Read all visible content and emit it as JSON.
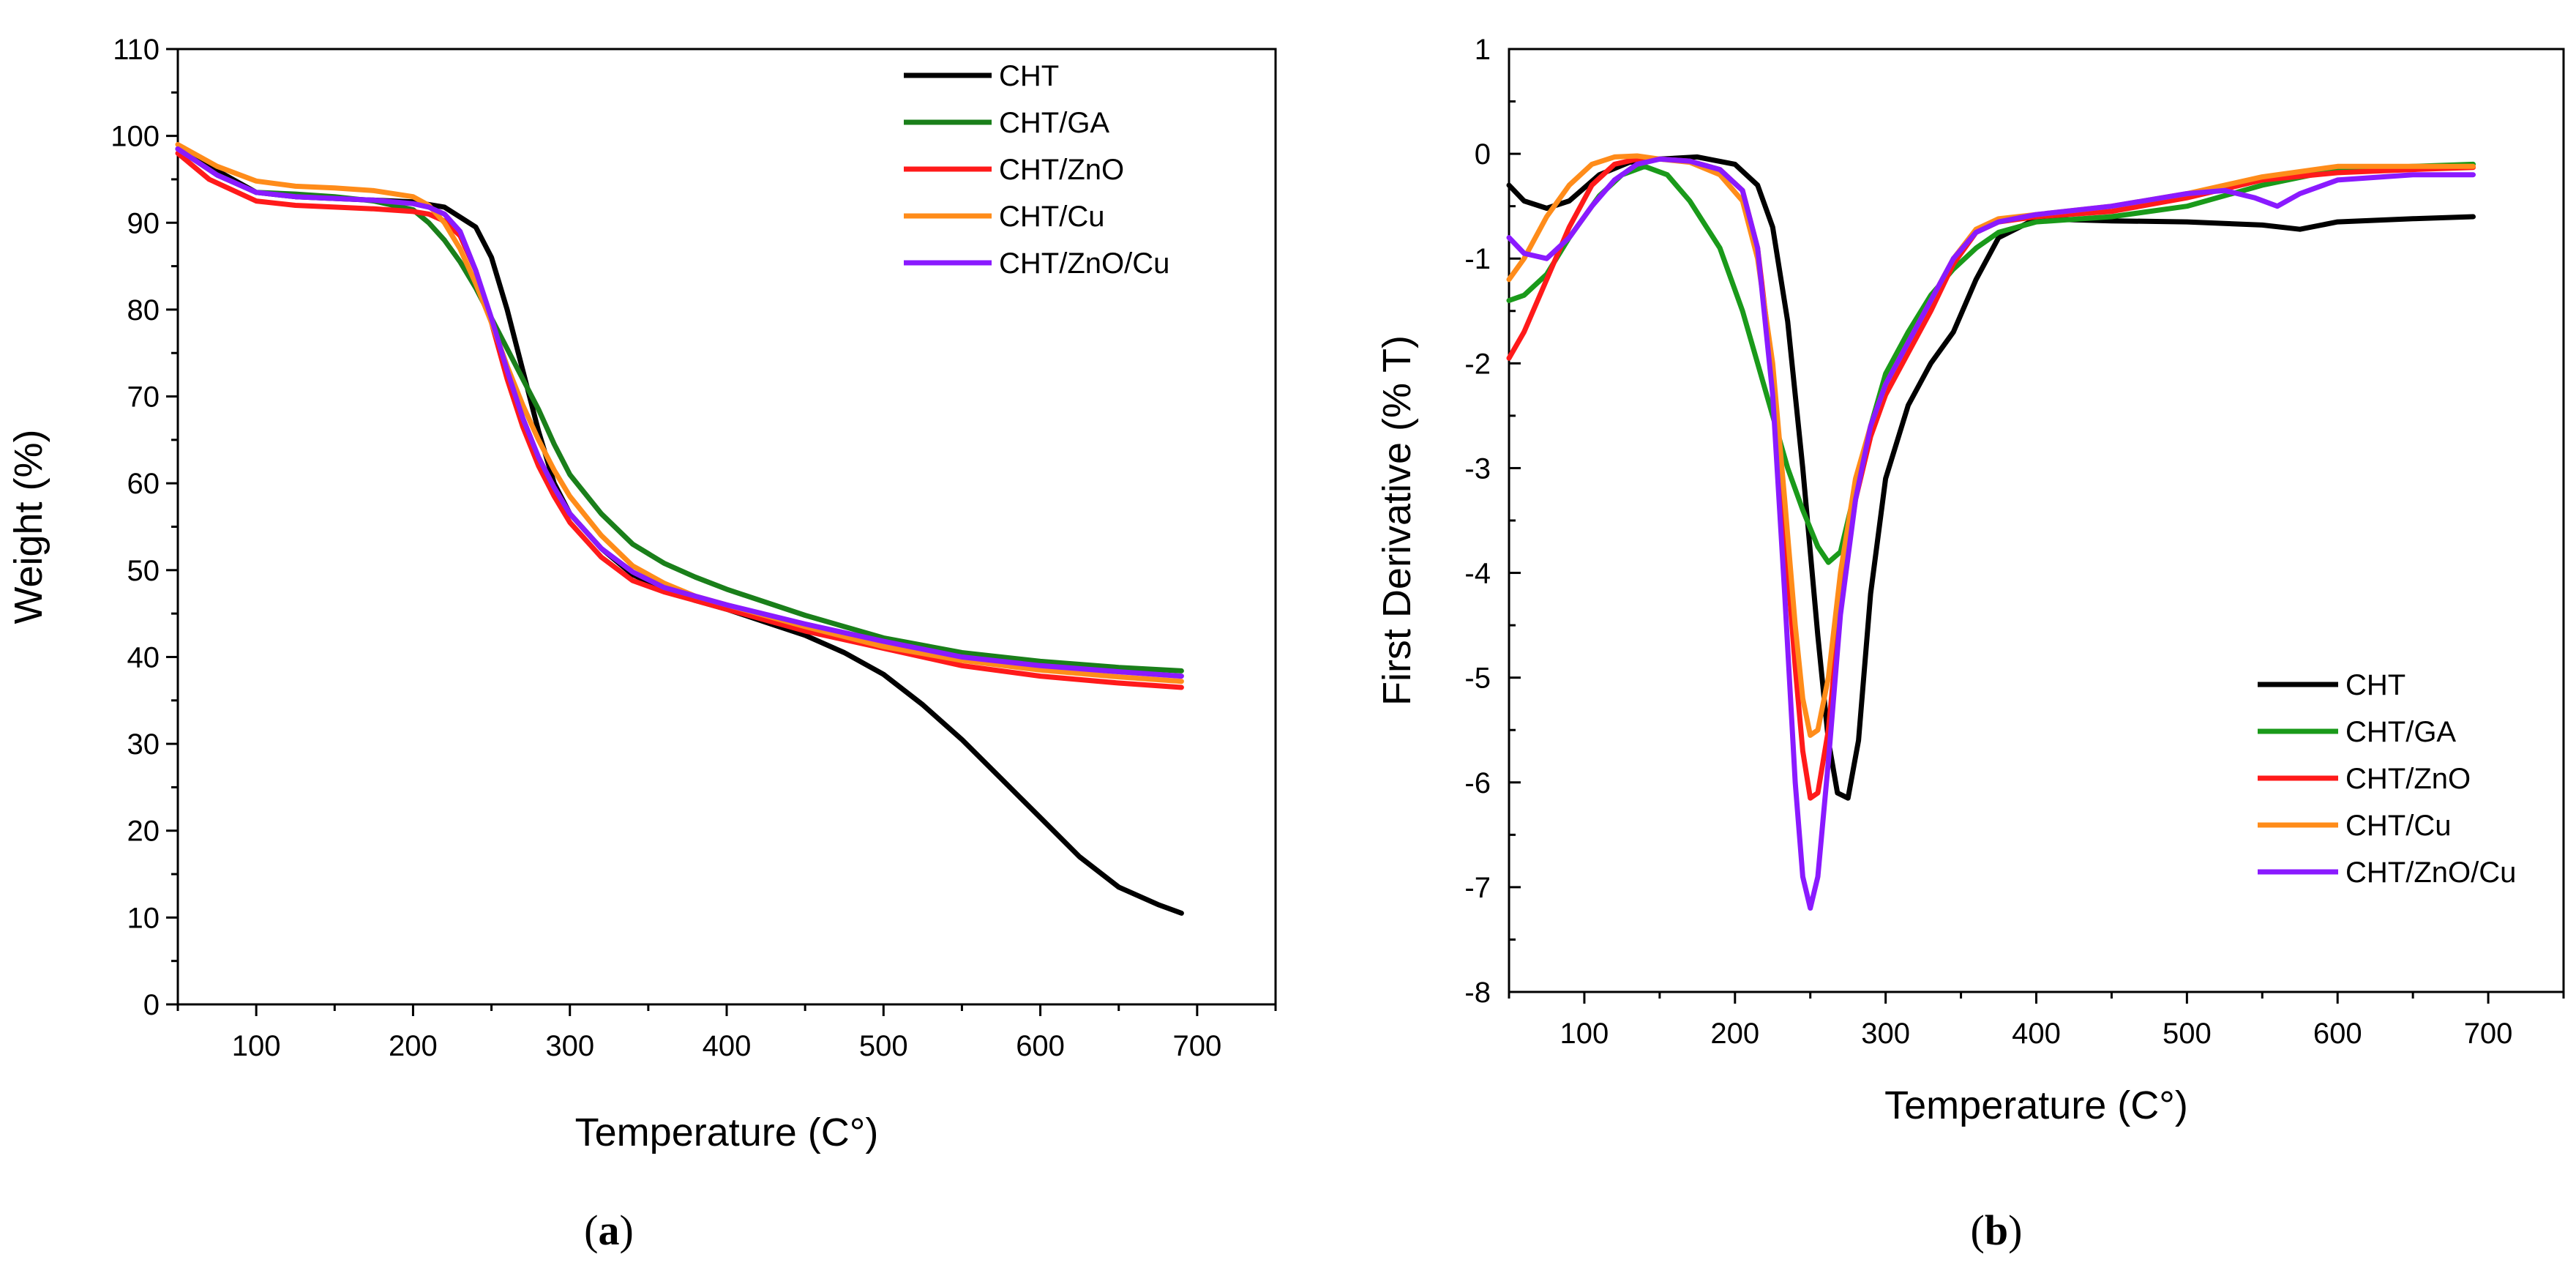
{
  "chart_data": [
    {
      "type": "line",
      "panel": "a",
      "caption_letter": "a",
      "xlabel": "Temperature (C°)",
      "ylabel": "Weight (%)",
      "xlim": [
        50,
        750
      ],
      "ylim": [
        0,
        110
      ],
      "xticks": [
        100,
        200,
        300,
        400,
        500,
        600,
        700
      ],
      "yticks": [
        0,
        10,
        20,
        30,
        40,
        50,
        60,
        70,
        80,
        90,
        100,
        110
      ],
      "legend_position": "top-right",
      "series": [
        {
          "name": "CHT",
          "color": "#000000",
          "x": [
            50,
            75,
            100,
            125,
            150,
            175,
            200,
            220,
            240,
            250,
            260,
            270,
            280,
            290,
            300,
            320,
            340,
            360,
            380,
            400,
            425,
            450,
            475,
            500,
            525,
            550,
            575,
            600,
            625,
            650,
            675,
            690
          ],
          "y": [
            98.5,
            96,
            93.5,
            93,
            92.8,
            92.6,
            92.4,
            91.8,
            89.5,
            86,
            80,
            73,
            66,
            60,
            56.5,
            52.5,
            49.5,
            47.8,
            46.5,
            45.5,
            44,
            42.5,
            40.5,
            38,
            34.5,
            30.5,
            26,
            21.5,
            17,
            13.5,
            11.5,
            10.5
          ]
        },
        {
          "name": "CHT/GA",
          "color": "#1a7f1a",
          "x": [
            50,
            75,
            100,
            125,
            150,
            175,
            200,
            210,
            220,
            230,
            240,
            250,
            260,
            270,
            280,
            290,
            300,
            320,
            340,
            360,
            380,
            400,
            450,
            500,
            550,
            600,
            650,
            690
          ],
          "y": [
            98.5,
            95.5,
            93.5,
            93.3,
            93,
            92.5,
            91.5,
            90,
            88,
            85.5,
            82.5,
            79,
            75.5,
            72,
            68.5,
            64.5,
            61,
            56.5,
            53,
            50.8,
            49.2,
            47.8,
            44.8,
            42.2,
            40.5,
            39.5,
            38.8,
            38.4
          ]
        },
        {
          "name": "CHT/ZnO",
          "color": "#ff1a1a",
          "x": [
            50,
            70,
            100,
            125,
            150,
            175,
            200,
            210,
            220,
            230,
            240,
            250,
            260,
            270,
            280,
            290,
            300,
            320,
            340,
            360,
            380,
            400,
            450,
            500,
            550,
            600,
            650,
            690
          ],
          "y": [
            98,
            95,
            92.5,
            92,
            91.8,
            91.6,
            91.3,
            91,
            90.2,
            88.5,
            84.5,
            78.5,
            72,
            66.5,
            62,
            58.5,
            55.5,
            51.5,
            48.8,
            47.5,
            46.5,
            45.5,
            43,
            41,
            39,
            37.8,
            37,
            36.5
          ]
        },
        {
          "name": "CHT/Cu",
          "color": "#ff8c1a",
          "x": [
            50,
            75,
            100,
            125,
            150,
            175,
            200,
            210,
            220,
            230,
            240,
            250,
            260,
            270,
            280,
            290,
            300,
            320,
            340,
            360,
            380,
            400,
            450,
            500,
            550,
            600,
            650,
            690
          ],
          "y": [
            99,
            96.5,
            94.8,
            94.2,
            94,
            93.7,
            93,
            92,
            90,
            87,
            83,
            78.5,
            73.5,
            69,
            65,
            61.5,
            58.5,
            54,
            50.5,
            48.5,
            47,
            46,
            43.5,
            41.2,
            39.6,
            38.5,
            37.7,
            37.2
          ]
        },
        {
          "name": "CHT/ZnO/Cu",
          "color": "#8a1aff",
          "x": [
            50,
            75,
            100,
            125,
            150,
            175,
            200,
            210,
            220,
            230,
            240,
            250,
            260,
            270,
            280,
            290,
            300,
            320,
            340,
            360,
            380,
            400,
            450,
            500,
            550,
            600,
            650,
            690
          ],
          "y": [
            98.5,
            95.5,
            93.5,
            93,
            92.8,
            92.6,
            92.2,
            91.8,
            91,
            89,
            84.5,
            79,
            73,
            67.5,
            63,
            59.5,
            56.5,
            52.5,
            49.8,
            48,
            47,
            46,
            43.8,
            41.8,
            40,
            39,
            38.3,
            37.8
          ]
        }
      ]
    },
    {
      "type": "line",
      "panel": "b",
      "caption_letter": "b",
      "xlabel": "Temperature (C°)",
      "ylabel": "First Derivative (% T)",
      "xlim": [
        50,
        750
      ],
      "ylim": [
        -8,
        1
      ],
      "xticks": [
        100,
        200,
        300,
        400,
        500,
        600,
        700
      ],
      "yticks": [
        1,
        0,
        -1,
        -2,
        -3,
        -4,
        -5,
        -6,
        -7,
        -8
      ],
      "legend_position": "bottom-right",
      "series": [
        {
          "name": "CHT",
          "color": "#000000",
          "x": [
            50,
            60,
            75,
            90,
            110,
            130,
            150,
            175,
            200,
            215,
            225,
            235,
            245,
            255,
            262,
            268,
            275,
            282,
            290,
            300,
            315,
            330,
            345,
            360,
            375,
            400,
            450,
            500,
            550,
            575,
            600,
            650,
            690
          ],
          "y": [
            -0.3,
            -0.45,
            -0.52,
            -0.45,
            -0.2,
            -0.08,
            -0.05,
            -0.03,
            -0.1,
            -0.3,
            -0.7,
            -1.6,
            -3,
            -4.6,
            -5.6,
            -6.1,
            -6.15,
            -5.6,
            -4.2,
            -3.1,
            -2.4,
            -2,
            -1.7,
            -1.2,
            -0.8,
            -0.62,
            -0.64,
            -0.65,
            -0.68,
            -0.72,
            -0.65,
            -0.62,
            -0.6
          ]
        },
        {
          "name": "CHT/GA",
          "color": "#1a9a1a",
          "x": [
            50,
            60,
            75,
            90,
            110,
            125,
            140,
            155,
            170,
            190,
            205,
            215,
            225,
            235,
            245,
            255,
            262,
            270,
            280,
            290,
            300,
            315,
            330,
            345,
            360,
            375,
            400,
            450,
            500,
            550,
            600,
            650,
            690
          ],
          "y": [
            -1.4,
            -1.35,
            -1.15,
            -0.8,
            -0.4,
            -0.2,
            -0.12,
            -0.2,
            -0.45,
            -0.9,
            -1.5,
            -2,
            -2.5,
            -3,
            -3.4,
            -3.75,
            -3.9,
            -3.8,
            -3.2,
            -2.6,
            -2.1,
            -1.7,
            -1.35,
            -1.1,
            -0.9,
            -0.75,
            -0.65,
            -0.6,
            -0.5,
            -0.3,
            -0.15,
            -0.12,
            -0.1
          ]
        },
        {
          "name": "CHT/ZnO",
          "color": "#ff1a1a",
          "x": [
            50,
            60,
            75,
            90,
            105,
            120,
            135,
            150,
            170,
            190,
            205,
            215,
            225,
            233,
            240,
            245,
            250,
            255,
            262,
            270,
            280,
            290,
            300,
            315,
            330,
            345,
            360,
            375,
            400,
            450,
            500,
            550,
            600,
            650,
            690
          ],
          "y": [
            -1.95,
            -1.7,
            -1.2,
            -0.7,
            -0.3,
            -0.1,
            -0.05,
            -0.05,
            -0.07,
            -0.15,
            -0.35,
            -0.9,
            -2.1,
            -3.6,
            -4.9,
            -5.7,
            -6.15,
            -6.1,
            -5.5,
            -4.3,
            -3.3,
            -2.7,
            -2.3,
            -1.9,
            -1.5,
            -1.05,
            -0.75,
            -0.65,
            -0.6,
            -0.55,
            -0.42,
            -0.25,
            -0.18,
            -0.15,
            -0.13
          ]
        },
        {
          "name": "CHT/Cu",
          "color": "#ff8c1a",
          "x": [
            50,
            60,
            75,
            90,
            105,
            120,
            135,
            150,
            170,
            190,
            205,
            215,
            225,
            233,
            240,
            245,
            250,
            255,
            262,
            270,
            280,
            290,
            300,
            315,
            330,
            345,
            360,
            375,
            400,
            450,
            500,
            550,
            600,
            650,
            690
          ],
          "y": [
            -1.2,
            -1,
            -0.6,
            -0.3,
            -0.1,
            -0.03,
            -0.02,
            -0.05,
            -0.08,
            -0.2,
            -0.45,
            -1,
            -2,
            -3.3,
            -4.5,
            -5.2,
            -5.55,
            -5.5,
            -5,
            -4,
            -3.1,
            -2.6,
            -2.2,
            -1.8,
            -1.4,
            -1,
            -0.72,
            -0.62,
            -0.58,
            -0.5,
            -0.38,
            -0.22,
            -0.12,
            -0.12,
            -0.12
          ]
        },
        {
          "name": "CHT/ZnO/Cu",
          "color": "#8a1aff",
          "x": [
            50,
            60,
            75,
            90,
            105,
            120,
            135,
            150,
            170,
            190,
            205,
            215,
            225,
            233,
            240,
            245,
            250,
            255,
            262,
            270,
            280,
            290,
            300,
            315,
            330,
            345,
            360,
            375,
            400,
            450,
            500,
            525,
            545,
            560,
            575,
            600,
            650,
            690
          ],
          "y": [
            -0.8,
            -0.95,
            -1,
            -0.8,
            -0.5,
            -0.25,
            -0.1,
            -0.05,
            -0.07,
            -0.15,
            -0.35,
            -0.9,
            -2.3,
            -4.2,
            -6,
            -6.9,
            -7.2,
            -6.9,
            -5.8,
            -4.4,
            -3.3,
            -2.6,
            -2.2,
            -1.8,
            -1.4,
            -1,
            -0.75,
            -0.65,
            -0.58,
            -0.5,
            -0.38,
            -0.35,
            -0.42,
            -0.5,
            -0.38,
            -0.25,
            -0.2,
            -0.2
          ]
        }
      ]
    }
  ]
}
